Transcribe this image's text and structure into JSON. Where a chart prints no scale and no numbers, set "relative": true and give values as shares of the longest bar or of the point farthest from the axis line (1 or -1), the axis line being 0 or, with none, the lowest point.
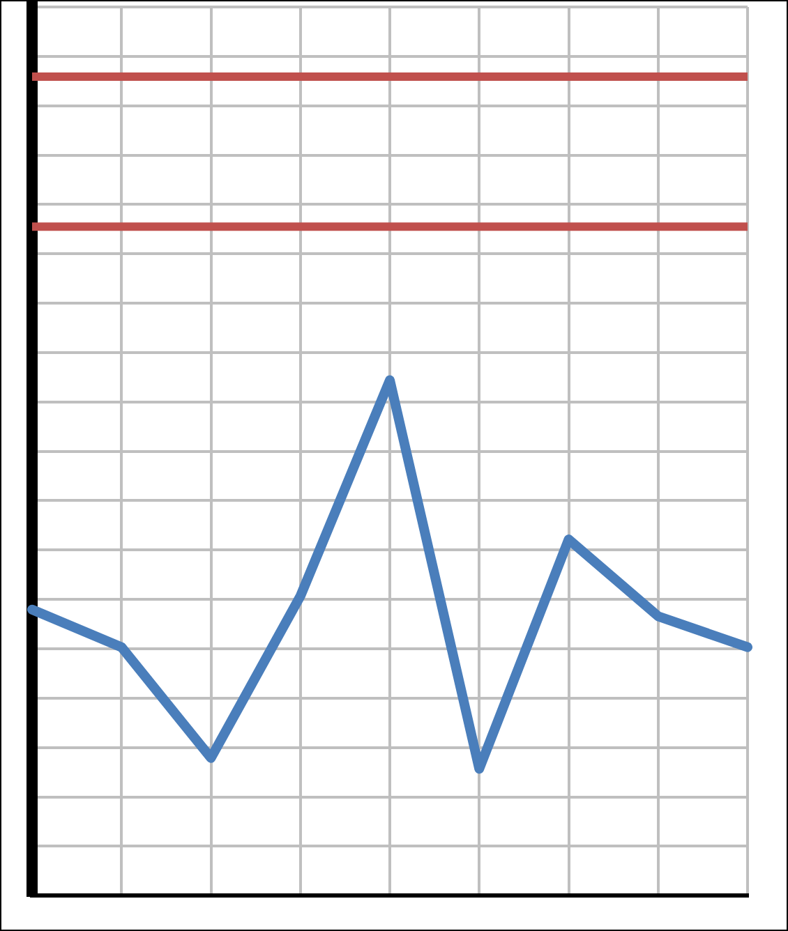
{
  "chart_data": {
    "type": "line",
    "relative": true,
    "grid": true,
    "marker": "none",
    "line_style": "solid",
    "categories": [
      null,
      null,
      null,
      null,
      null,
      null,
      null,
      null,
      null
    ],
    "series": [
      {
        "color": "#4a7ebb",
        "values": [
          0.555,
          0.482,
          0.267,
          0.581,
          1,
          0.246,
          0.691,
          0.542,
          0.482
        ]
      }
    ],
    "ref_lines": [
      {
        "axis": "y",
        "value": 1.589,
        "color": "#c0504d",
        "line_style": "solid"
      },
      {
        "axis": "y",
        "value": 1.298,
        "color": "#c0504d",
        "line_style": "solid"
      }
    ]
  }
}
